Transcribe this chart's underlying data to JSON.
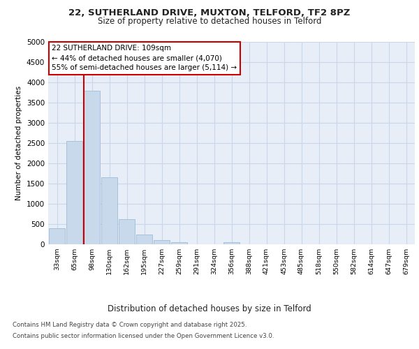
{
  "title_line1": "22, SUTHERLAND DRIVE, MUXTON, TELFORD, TF2 8PZ",
  "title_line2": "Size of property relative to detached houses in Telford",
  "xlabel": "Distribution of detached houses by size in Telford",
  "ylabel": "Number of detached properties",
  "categories": [
    "33sqm",
    "65sqm",
    "98sqm",
    "130sqm",
    "162sqm",
    "195sqm",
    "227sqm",
    "259sqm",
    "291sqm",
    "324sqm",
    "356sqm",
    "388sqm",
    "421sqm",
    "453sqm",
    "485sqm",
    "518sqm",
    "550sqm",
    "582sqm",
    "614sqm",
    "647sqm",
    "679sqm"
  ],
  "values": [
    400,
    2550,
    3800,
    1650,
    625,
    250,
    100,
    50,
    0,
    0,
    50,
    0,
    0,
    0,
    0,
    0,
    0,
    0,
    0,
    0,
    0
  ],
  "bar_color": "#c9d9ec",
  "bar_edge_color": "#a0bcd8",
  "grid_color": "#c8d8e8",
  "background_color": "#e8eef8",
  "fig_background_color": "#ffffff",
  "annotation_box_color": "#ffffff",
  "annotation_border_color": "#cc0000",
  "vline_color": "#cc0000",
  "annotation_title": "22 SUTHERLAND DRIVE: 109sqm",
  "annotation_line2": "← 44% of detached houses are smaller (4,070)",
  "annotation_line3": "55% of semi-detached houses are larger (5,114) →",
  "ylim": [
    0,
    5000
  ],
  "yticks": [
    0,
    500,
    1000,
    1500,
    2000,
    2500,
    3000,
    3500,
    4000,
    4500,
    5000
  ],
  "footer_line1": "Contains HM Land Registry data © Crown copyright and database right 2025.",
  "footer_line2": "Contains public sector information licensed under the Open Government Licence v3.0.",
  "figsize": [
    6.0,
    5.0
  ],
  "dpi": 100
}
